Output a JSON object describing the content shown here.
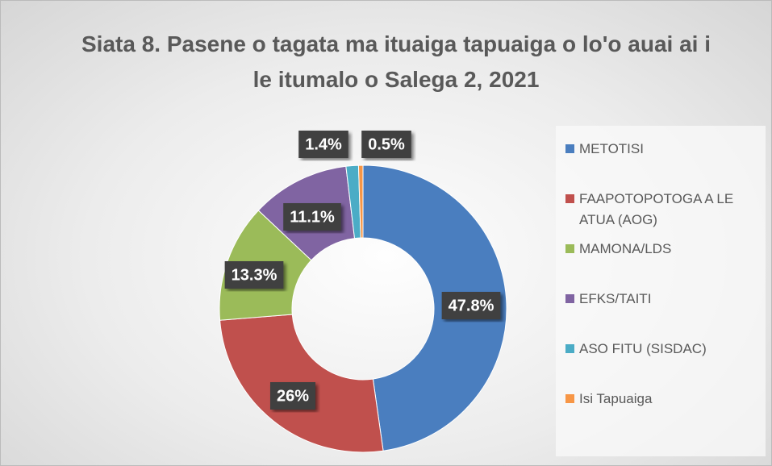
{
  "chart_data": {
    "type": "donut",
    "title": "Siata 8. Pasene o tagata ma ituaiga tapuaiga o lo'o auai ai i le itumalo o Salega 2, 2021",
    "categories": [
      "METOTISI",
      "FAAPOTOPOTOGA A LE ATUA (AOG)",
      "MAMONA/LDS",
      "EFKS/TAITI",
      "ASO FITU  (SISDAC)",
      "Isi Tapuaiga"
    ],
    "values": [
      47.8,
      26,
      13.3,
      11.1,
      1.4,
      0.5
    ],
    "value_labels": [
      "47.8%",
      "26%",
      "13.3%",
      "11.1%",
      "1.4%",
      "0.5%"
    ],
    "colors": [
      "#4a7ebf",
      "#c0504d",
      "#9bbb59",
      "#8064a2",
      "#4bacc6",
      "#f79646"
    ],
    "legend": "right"
  }
}
